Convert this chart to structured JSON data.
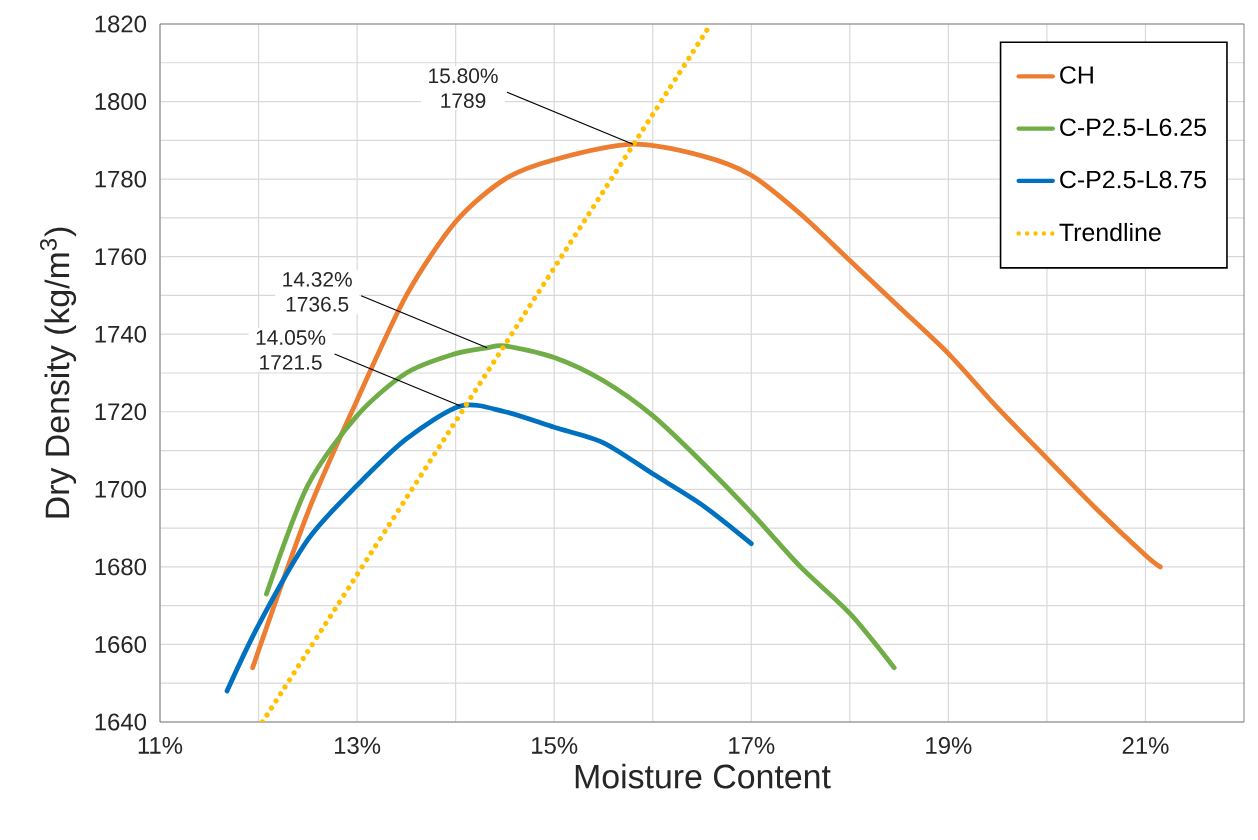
{
  "chart_data": {
    "type": "line",
    "xlabel": "Moisture Content",
    "ylabel": "Dry Density (kg/m$^{3}$)",
    "xlim": [
      11,
      22
    ],
    "ylim": [
      1640,
      1820
    ],
    "xticks": [
      {
        "value": 11,
        "label": "11%"
      },
      {
        "value": 12,
        "label": null
      },
      {
        "value": 13,
        "label": "13%"
      },
      {
        "value": 14,
        "label": null
      },
      {
        "value": 15,
        "label": "15%"
      },
      {
        "value": 16,
        "label": null
      },
      {
        "value": 17,
        "label": "17%"
      },
      {
        "value": 18,
        "label": null
      },
      {
        "value": 19,
        "label": "19%"
      },
      {
        "value": 20,
        "label": null
      },
      {
        "value": 21,
        "label": "21%"
      }
    ],
    "yticks": [
      1640,
      {
        "value": 1650,
        "label": null
      },
      1660,
      {
        "value": 1670,
        "label": null
      },
      1680,
      {
        "value": 1690,
        "label": null
      },
      1700,
      {
        "value": 1710,
        "label": null
      },
      1720,
      {
        "value": 1730,
        "label": null
      },
      1740,
      {
        "value": 1750,
        "label": null
      },
      1760,
      {
        "value": 1770,
        "label": null
      },
      1780,
      {
        "value": 1790,
        "label": null
      },
      1800,
      {
        "value": 1810,
        "label": null
      },
      1820
    ],
    "grid": true,
    "legend": "top right",
    "marker": "none",
    "series": [
      {
        "name": "CH",
        "color": "#ed7d31",
        "line_style": "solid",
        "x": [
          11.94,
          12.5,
          13,
          13.5,
          14,
          14.5,
          15,
          15.8,
          16.5,
          17,
          17.5,
          18,
          18.5,
          19,
          19.5,
          20,
          20.5,
          21,
          21.15
        ],
        "values": [
          1654,
          1694,
          1723,
          1750,
          1769,
          1780,
          1785,
          1789,
          1786,
          1781,
          1771,
          1759,
          1747,
          1735,
          1721,
          1708,
          1695,
          1683,
          1680
        ]
      },
      {
        "name": "C-P2.5-L6.25",
        "color": "#70ad47",
        "line_style": "solid",
        "x": [
          12.08,
          12.5,
          13,
          13.5,
          14,
          14.32,
          14.5,
          15,
          15.5,
          16,
          16.5,
          17,
          17.5,
          18,
          18.45
        ],
        "values": [
          1673,
          1701,
          1719,
          1730,
          1735,
          1736.5,
          1737,
          1734,
          1728,
          1719,
          1707,
          1694,
          1680,
          1668,
          1654
        ]
      },
      {
        "name": "C-P2.5-L8.75",
        "color": "#0070c0",
        "line_style": "solid",
        "x": [
          11.68,
          12,
          12.5,
          13,
          13.5,
          14.05,
          14.5,
          15,
          15.5,
          16,
          16.5,
          17
        ],
        "values": [
          1648,
          1665,
          1687,
          1701,
          1713,
          1721.5,
          1720,
          1716,
          1712,
          1704,
          1696,
          1686
        ]
      },
      {
        "name": "Trendline",
        "color": "#ffc000",
        "line_style": "dotted",
        "x": [
          12.04,
          16.59
        ],
        "values": [
          1640,
          1820
        ]
      }
    ],
    "annotations": [
      {
        "text": "15.80% 1789",
        "x": 15.8,
        "y": 1789
      },
      {
        "text": "14.32% 1736.5",
        "x": 14.32,
        "y": 1736.5
      },
      {
        "text": "14.05% 1721.5",
        "x": 14.05,
        "y": 1721.5
      }
    ]
  }
}
